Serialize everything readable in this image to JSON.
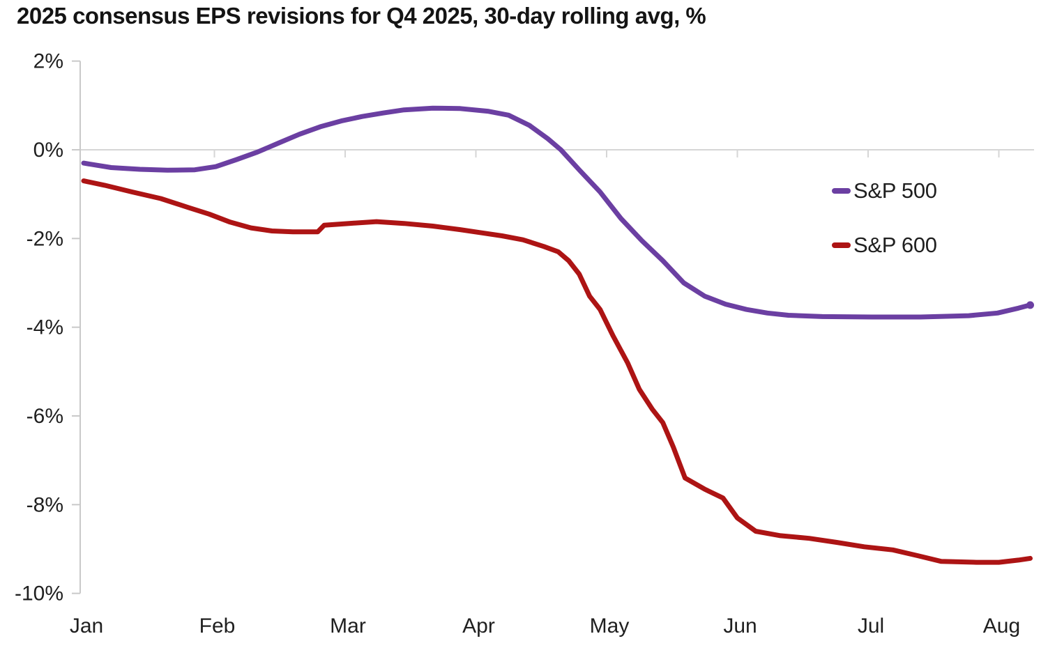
{
  "chart_data": {
    "type": "line",
    "title": "2025 consensus EPS revisions for Q4 2025, 30-day rolling avg, %",
    "x_labels": [
      "Jan",
      "Feb",
      "Mar",
      "Apr",
      "May",
      "Jun",
      "Jul",
      "Aug"
    ],
    "y_ticks": [
      "2%",
      "0%",
      "-2%",
      "-4%",
      "-6%",
      "-8%",
      "-10%"
    ],
    "y_tick_values": [
      2,
      0,
      -2,
      -4,
      -6,
      -8,
      -10
    ],
    "ylim": [
      -10,
      2
    ],
    "xlim_months": [
      0,
      7.28
    ],
    "grid": "horizontal gridline at 0% only, with month tick marks on it",
    "legend_position": "upper-right",
    "axis_color": "#c9c9c9",
    "gridline_color": "#d6d6d6",
    "text_color": "#1f1f1f",
    "series": [
      {
        "name": "S&P 500",
        "color": "#6b3fa2",
        "end_dot": true,
        "points": [
          [
            0.0,
            -0.3
          ],
          [
            0.21,
            -0.4
          ],
          [
            0.43,
            -0.44
          ],
          [
            0.64,
            -0.46
          ],
          [
            0.85,
            -0.45
          ],
          [
            1.01,
            -0.38
          ],
          [
            1.17,
            -0.22
          ],
          [
            1.33,
            -0.05
          ],
          [
            1.49,
            0.15
          ],
          [
            1.65,
            0.35
          ],
          [
            1.81,
            0.52
          ],
          [
            1.97,
            0.65
          ],
          [
            2.13,
            0.75
          ],
          [
            2.29,
            0.83
          ],
          [
            2.45,
            0.9
          ],
          [
            2.67,
            0.94
          ],
          [
            2.88,
            0.93
          ],
          [
            3.09,
            0.87
          ],
          [
            3.25,
            0.78
          ],
          [
            3.41,
            0.55
          ],
          [
            3.55,
            0.25
          ],
          [
            3.65,
            0.0
          ],
          [
            3.79,
            -0.45
          ],
          [
            3.95,
            -0.95
          ],
          [
            4.11,
            -1.55
          ],
          [
            4.27,
            -2.05
          ],
          [
            4.43,
            -2.5
          ],
          [
            4.59,
            -3.0
          ],
          [
            4.75,
            -3.3
          ],
          [
            4.91,
            -3.48
          ],
          [
            5.07,
            -3.6
          ],
          [
            5.23,
            -3.68
          ],
          [
            5.39,
            -3.73
          ],
          [
            5.65,
            -3.76
          ],
          [
            6.03,
            -3.77
          ],
          [
            6.4,
            -3.77
          ],
          [
            6.77,
            -3.74
          ],
          [
            6.99,
            -3.68
          ],
          [
            7.15,
            -3.57
          ],
          [
            7.24,
            -3.5
          ]
        ]
      },
      {
        "name": "S&P 600",
        "color": "#ad1414",
        "end_dot": false,
        "points": [
          [
            0.0,
            -0.7
          ],
          [
            0.16,
            -0.8
          ],
          [
            0.37,
            -0.95
          ],
          [
            0.59,
            -1.1
          ],
          [
            0.8,
            -1.3
          ],
          [
            0.96,
            -1.45
          ],
          [
            1.12,
            -1.63
          ],
          [
            1.28,
            -1.76
          ],
          [
            1.44,
            -1.83
          ],
          [
            1.6,
            -1.85
          ],
          [
            1.79,
            -1.85
          ],
          [
            1.84,
            -1.7
          ],
          [
            2.03,
            -1.66
          ],
          [
            2.24,
            -1.62
          ],
          [
            2.45,
            -1.66
          ],
          [
            2.67,
            -1.72
          ],
          [
            2.88,
            -1.8
          ],
          [
            3.04,
            -1.87
          ],
          [
            3.2,
            -1.94
          ],
          [
            3.36,
            -2.03
          ],
          [
            3.52,
            -2.18
          ],
          [
            3.63,
            -2.3
          ],
          [
            3.71,
            -2.5
          ],
          [
            3.79,
            -2.8
          ],
          [
            3.87,
            -3.3
          ],
          [
            3.95,
            -3.6
          ],
          [
            4.05,
            -4.2
          ],
          [
            4.16,
            -4.8
          ],
          [
            4.25,
            -5.4
          ],
          [
            4.35,
            -5.85
          ],
          [
            4.43,
            -6.15
          ],
          [
            4.51,
            -6.7
          ],
          [
            4.6,
            -7.4
          ],
          [
            4.75,
            -7.65
          ],
          [
            4.89,
            -7.85
          ],
          [
            5.0,
            -8.3
          ],
          [
            5.14,
            -8.6
          ],
          [
            5.33,
            -8.7
          ],
          [
            5.55,
            -8.76
          ],
          [
            5.76,
            -8.85
          ],
          [
            5.97,
            -8.95
          ],
          [
            6.19,
            -9.02
          ],
          [
            6.38,
            -9.15
          ],
          [
            6.56,
            -9.28
          ],
          [
            6.83,
            -9.3
          ],
          [
            7.0,
            -9.3
          ],
          [
            7.15,
            -9.25
          ],
          [
            7.24,
            -9.21
          ]
        ]
      }
    ]
  }
}
